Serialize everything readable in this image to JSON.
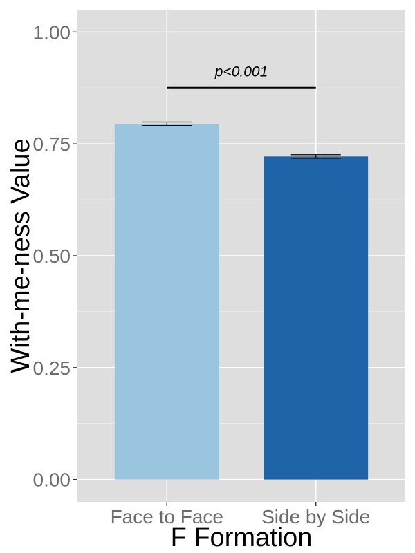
{
  "chart_data": {
    "type": "bar",
    "title": "",
    "xlabel": "F Formation",
    "ylabel": "With-me-ness Value",
    "categories": [
      "Face to Face",
      "Side by Side"
    ],
    "values": [
      0.795,
      0.722
    ],
    "error": [
      0.004,
      0.004
    ],
    "colors": [
      "#9ac5de",
      "#1f64a8"
    ],
    "ylim": [
      -0.05,
      1.05
    ],
    "yticks": [
      0.0,
      0.25,
      0.5,
      0.75,
      1.0
    ],
    "ytick_labels": [
      "0.00",
      "0.25",
      "0.50",
      "0.75",
      "1.00"
    ],
    "grid": true,
    "panel_background": "#dedede",
    "annotation": {
      "text": "p<0.001",
      "y": 0.875,
      "from_category": "Face to Face",
      "to_category": "Side by Side"
    }
  }
}
